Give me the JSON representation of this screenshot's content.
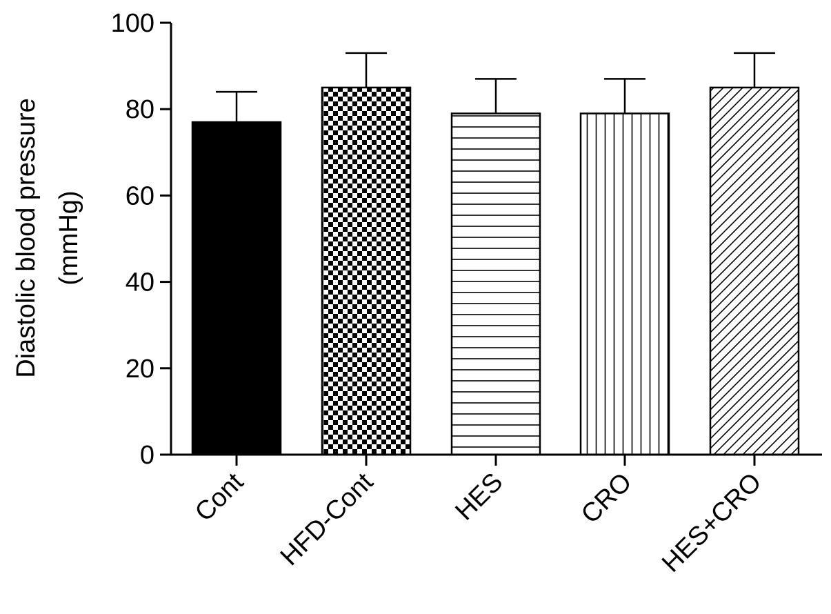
{
  "chart_data": {
    "type": "bar",
    "title": "",
    "xlabel": "",
    "ylabel_lines": [
      "Diastolic blood pressure",
      "(mmHg)"
    ],
    "ylim": [
      0,
      100
    ],
    "yticks": [
      0,
      20,
      40,
      60,
      80,
      100
    ],
    "ytick_labels": [
      "0",
      "20",
      "40",
      "60",
      "80",
      "100"
    ],
    "categories": [
      "Cont",
      "HFD-Cont",
      "HES",
      "CRO",
      "HES+CRO"
    ],
    "values": [
      77,
      85,
      79,
      79,
      85
    ],
    "errors": [
      7,
      8,
      8,
      8,
      8
    ],
    "fill_patterns": [
      "solid-black",
      "checkerboard",
      "horizontal-lines",
      "vertical-lines",
      "diagonal-lines"
    ],
    "colors": {
      "ink": "#000000",
      "background": "#ffffff"
    },
    "grid": false,
    "legend": "none"
  }
}
